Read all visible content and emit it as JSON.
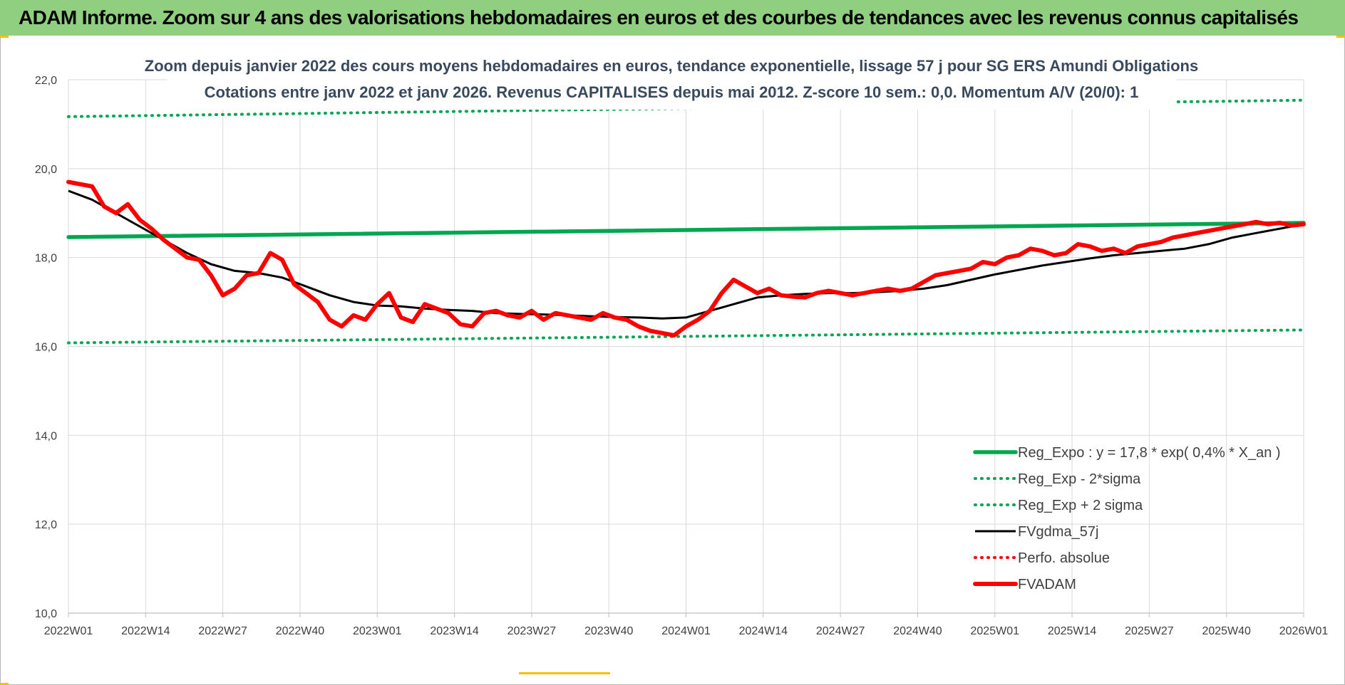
{
  "header": {
    "title": "ADAM Informe. Zoom sur 4 ans des valorisations hebdomadaires en euros et des courbes de tendances avec les revenus connus capitalisés"
  },
  "colors": {
    "banner": "#8fcf7f",
    "green": "#00a650",
    "black": "#000000",
    "red": "#ff0000",
    "grid": "#d9d9d9"
  },
  "chart_data": {
    "type": "line",
    "title_lines": [
      "Zoom depuis janvier 2022 des cours moyens hebdomadaires en euros, tendance exponentielle, lissage 57 j pour SG ERS Amundi Obligations",
      "Cotations entre janv 2022 et janv 2026. Revenus CAPITALISES depuis mai 2012. Z-score 10 sem.: 0,0. Momentum A/V (20/0): 1"
    ],
    "x_tick_labels": [
      "2022W01",
      "2022W14",
      "2022W27",
      "2022W40",
      "2023W01",
      "2023W14",
      "2023W27",
      "2023W40",
      "2024W01",
      "2024W14",
      "2024W27",
      "2024W40",
      "2025W01",
      "2025W14",
      "2025W27",
      "2025W40",
      "2026W01"
    ],
    "y_tick_labels": [
      "10,0",
      "12,0",
      "14,0",
      "16,0",
      "18,0",
      "20,0",
      "22,0"
    ],
    "ylim": [
      10,
      22
    ],
    "x_range_weeks": [
      0,
      208
    ],
    "grid": true,
    "legend_position": "bottom-right",
    "series": [
      {
        "name": "Reg_Expo : y = 17,8 * exp( 0,4% *  X_an )",
        "style": "solid-thick",
        "color": "#00a650",
        "x": [
          0,
          208
        ],
        "values": [
          18.46,
          18.78
        ]
      },
      {
        "name": "Reg_Exp - 2*sigma",
        "style": "dotted",
        "color": "#00a650",
        "x": [
          0,
          208
        ],
        "values": [
          16.08,
          16.37
        ]
      },
      {
        "name": "Reg_Exp + 2 sigma",
        "style": "dotted",
        "color": "#00a650",
        "x": [
          0,
          208
        ],
        "values": [
          21.17,
          21.54
        ]
      },
      {
        "name": "FVgdma_57j",
        "style": "solid",
        "color": "#000000",
        "x": [
          0,
          4,
          8,
          12,
          16,
          20,
          24,
          28,
          32,
          36,
          40,
          44,
          48,
          52,
          56,
          60,
          64,
          68,
          72,
          76,
          80,
          84,
          88,
          92,
          96,
          100,
          104,
          108,
          112,
          116,
          120,
          124,
          128,
          132,
          136,
          140,
          144,
          148,
          152,
          156,
          160,
          164,
          168,
          172,
          176,
          180,
          184,
          188,
          192,
          196,
          200,
          204,
          208
        ],
        "values": [
          19.5,
          19.3,
          19.0,
          18.7,
          18.4,
          18.1,
          17.85,
          17.7,
          17.65,
          17.55,
          17.35,
          17.15,
          17.0,
          16.92,
          16.9,
          16.85,
          16.82,
          16.8,
          16.75,
          16.73,
          16.72,
          16.7,
          16.68,
          16.66,
          16.65,
          16.63,
          16.65,
          16.8,
          16.95,
          17.1,
          17.15,
          17.18,
          17.2,
          17.2,
          17.22,
          17.25,
          17.3,
          17.38,
          17.5,
          17.62,
          17.72,
          17.82,
          17.9,
          17.98,
          18.05,
          18.1,
          18.15,
          18.2,
          18.3,
          18.45,
          18.55,
          18.65,
          18.75
        ]
      },
      {
        "name": "Perfo. absolue",
        "style": "dotted",
        "color": "#ff0000",
        "x": [],
        "values": []
      },
      {
        "name": "FVADAM",
        "style": "solid-thick",
        "color": "#ff0000",
        "x": [
          0,
          2,
          4,
          6,
          8,
          10,
          12,
          14,
          16,
          18,
          20,
          22,
          24,
          26,
          28,
          30,
          32,
          34,
          36,
          38,
          40,
          42,
          44,
          46,
          48,
          50,
          52,
          54,
          56,
          58,
          60,
          62,
          64,
          66,
          68,
          70,
          72,
          74,
          76,
          78,
          80,
          82,
          84,
          86,
          88,
          90,
          92,
          94,
          96,
          98,
          100,
          102,
          104,
          106,
          108,
          110,
          112,
          114,
          116,
          118,
          120,
          122,
          124,
          126,
          128,
          130,
          132,
          134,
          136,
          138,
          140,
          142,
          144,
          146,
          148,
          150,
          152,
          154,
          156,
          158,
          160,
          162,
          164,
          166,
          168,
          170,
          172,
          174,
          176,
          178,
          180,
          182,
          184,
          186,
          188,
          190,
          192,
          194,
          196,
          198,
          200,
          202,
          204,
          206,
          208
        ],
        "values": [
          19.7,
          19.65,
          19.6,
          19.15,
          19.0,
          19.2,
          18.85,
          18.65,
          18.4,
          18.2,
          18.0,
          17.95,
          17.6,
          17.15,
          17.3,
          17.6,
          17.65,
          18.1,
          17.95,
          17.4,
          17.2,
          17.0,
          16.6,
          16.45,
          16.7,
          16.6,
          16.95,
          17.2,
          16.65,
          16.55,
          16.95,
          16.85,
          16.75,
          16.5,
          16.45,
          16.75,
          16.8,
          16.7,
          16.65,
          16.8,
          16.6,
          16.75,
          16.7,
          16.65,
          16.6,
          16.75,
          16.65,
          16.6,
          16.45,
          16.35,
          16.3,
          16.25,
          16.45,
          16.6,
          16.8,
          17.2,
          17.5,
          17.35,
          17.2,
          17.3,
          17.15,
          17.12,
          17.1,
          17.2,
          17.25,
          17.2,
          17.15,
          17.2,
          17.25,
          17.3,
          17.25,
          17.3,
          17.45,
          17.6,
          17.65,
          17.7,
          17.75,
          17.9,
          17.85,
          18.0,
          18.05,
          18.2,
          18.15,
          18.05,
          18.1,
          18.3,
          18.25,
          18.15,
          18.2,
          18.1,
          18.25,
          18.3,
          18.35,
          18.45,
          18.5,
          18.55,
          18.6,
          18.65,
          18.7,
          18.75,
          18.8,
          18.75,
          18.78,
          18.72,
          18.75
        ]
      }
    ]
  }
}
